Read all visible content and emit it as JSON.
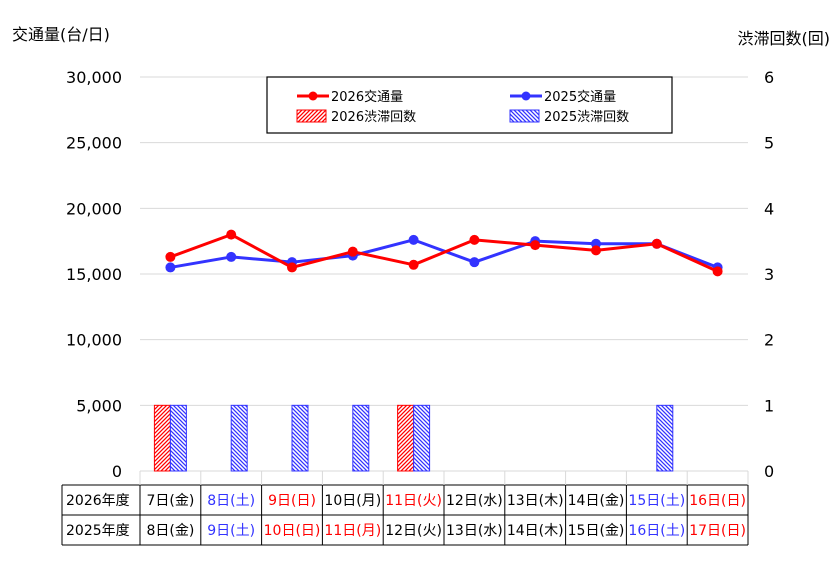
{
  "chart_data": {
    "type": "bar+line",
    "title": "",
    "y_left_label": "交通量(台/日)",
    "y_right_label": "渋滞回数(回)",
    "y_left_range": [
      0,
      30000
    ],
    "y_left_ticks": [
      "0",
      "5,000",
      "10,000",
      "15,000",
      "20,000",
      "25,000",
      "30,000"
    ],
    "y_right_range": [
      0,
      6
    ],
    "y_right_ticks": [
      "0",
      "1",
      "2",
      "3",
      "4",
      "5",
      "6"
    ],
    "grid": "horizontal",
    "legend_position": "top-center",
    "legend": {
      "line_2026": "2026交通量",
      "line_2025": "2025交通量",
      "bar_2026": "2026渋滞回数",
      "bar_2025": "2025渋滞回数"
    },
    "colors": {
      "c2026": "#ff0000",
      "c2025": "#3333ff"
    },
    "series": [
      {
        "name": "2026交通量",
        "type": "line",
        "axis": "left",
        "values": [
          16300,
          18000,
          15500,
          16700,
          15700,
          17600,
          17200,
          16800,
          17300,
          15200
        ]
      },
      {
        "name": "2025交通量",
        "type": "line",
        "axis": "left",
        "values": [
          15500,
          16300,
          15900,
          16400,
          17600,
          15900,
          17500,
          17300,
          17300,
          15500
        ]
      },
      {
        "name": "2026渋滞回数",
        "type": "bar",
        "axis": "right",
        "values": [
          1,
          0,
          0,
          0,
          1,
          0,
          0,
          0,
          0,
          0
        ]
      },
      {
        "name": "2025渋滞回数",
        "type": "bar",
        "axis": "right",
        "values": [
          1,
          1,
          1,
          1,
          1,
          0,
          0,
          0,
          1,
          0
        ]
      }
    ],
    "table": {
      "row_labels": [
        "2026年度",
        "2025年度"
      ],
      "row_2026": [
        {
          "text": "7日(金)",
          "color": "#000000"
        },
        {
          "text": "8日(土)",
          "color": "#3333ff"
        },
        {
          "text": "9日(日)",
          "color": "#ff0000"
        },
        {
          "text": "10日(月)",
          "color": "#000000"
        },
        {
          "text": "11日(火)",
          "color": "#ff0000"
        },
        {
          "text": "12日(水)",
          "color": "#000000"
        },
        {
          "text": "13日(木)",
          "color": "#000000"
        },
        {
          "text": "14日(金)",
          "color": "#000000"
        },
        {
          "text": "15日(土)",
          "color": "#3333ff"
        },
        {
          "text": "16日(日)",
          "color": "#ff0000"
        }
      ],
      "row_2025": [
        {
          "text": "8日(金)",
          "color": "#000000"
        },
        {
          "text": "9日(土)",
          "color": "#3333ff"
        },
        {
          "text": "10日(日)",
          "color": "#ff0000"
        },
        {
          "text": "11日(月)",
          "color": "#ff0000"
        },
        {
          "text": "12日(火)",
          "color": "#000000"
        },
        {
          "text": "13日(水)",
          "color": "#000000"
        },
        {
          "text": "14日(木)",
          "color": "#000000"
        },
        {
          "text": "15日(金)",
          "color": "#000000"
        },
        {
          "text": "16日(土)",
          "color": "#3333ff"
        },
        {
          "text": "17日(日)",
          "color": "#ff0000"
        }
      ]
    }
  }
}
